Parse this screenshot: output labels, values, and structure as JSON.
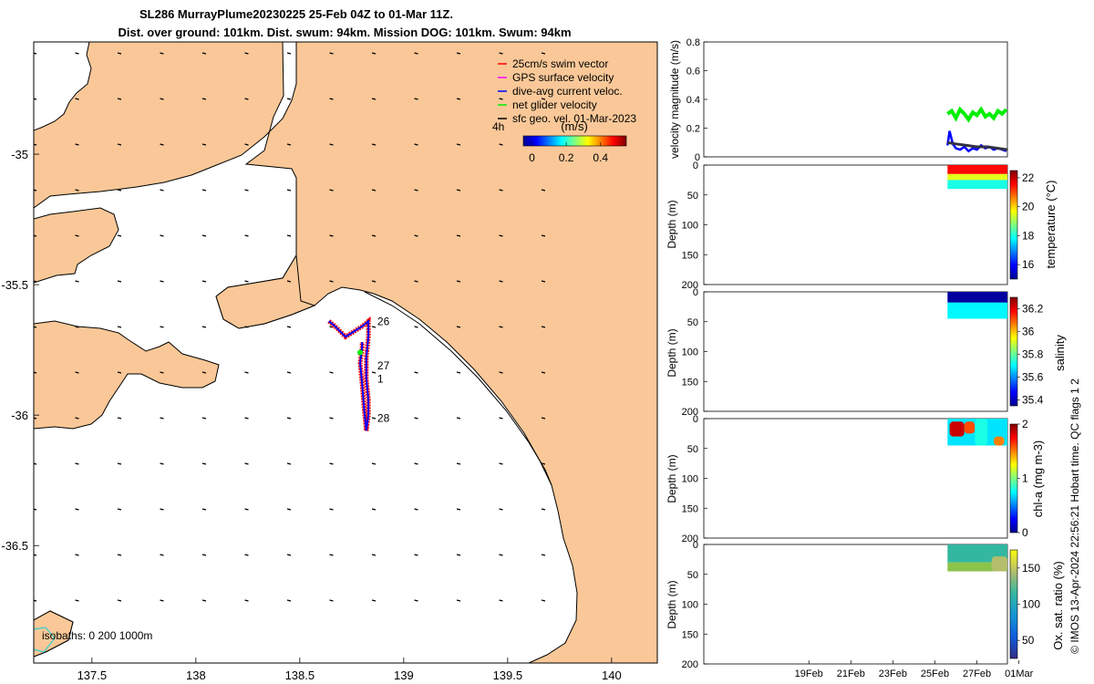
{
  "title": {
    "line1": "SL286 MurrayPlume20230225 25-Feb 04Z to 01-Mar 11Z.",
    "line2": "Dist. over ground: 101km. Dist. swum: 94km. Mission DOG: 101km. Swum: 94km"
  },
  "colors": {
    "land": "#fac898",
    "sea": "#ffffff",
    "track_red": "#ff0000",
    "track_blue": "#0000ff",
    "net_green": "#00ee00",
    "geo_dark": "#333344",
    "isobath_cyan": "#33cccc"
  },
  "chart_data": [
    {
      "type": "scatter",
      "id": "map",
      "xlabel": "",
      "ylabel": "",
      "xlim": [
        137.22,
        140.22
      ],
      "ylim": [
        -36.95,
        -34.57
      ],
      "x_ticks": [
        137.5,
        138,
        138.5,
        139,
        139.5,
        140
      ],
      "x_tick_labels": [
        "137.5",
        "138",
        "138.5",
        "139",
        "139.5",
        "140"
      ],
      "y_ticks": [
        -35,
        -35.5,
        -36,
        -36.5
      ],
      "y_tick_labels": [
        "-35",
        "-35.5",
        "-36",
        "-36.5"
      ],
      "legend": {
        "placement": "top-right",
        "entries": [
          {
            "label": "25cm/s swim vector",
            "color": "#ff0000"
          },
          {
            "label": "GPS surface velocity",
            "color": "#ff00ff"
          },
          {
            "label": "dive-avg current veloc.",
            "color": "#0000ff"
          },
          {
            "label": "net glider velocity",
            "color": "#00ee00"
          },
          {
            "label": "sfc geo. vel. 01-Mar-2023",
            "color": "#000000"
          }
        ]
      },
      "colorbar": {
        "label": "(m/s)",
        "corner_label": "4h",
        "ticks": [
          "0",
          "0.2",
          "0.4"
        ],
        "range": [
          -0.05,
          0.55
        ]
      },
      "isobaths_label": "isobaths: 0   200  1000m",
      "track": [
        [
          138.64,
          -35.64
        ],
        [
          138.67,
          -35.66
        ],
        [
          138.72,
          -35.7
        ],
        [
          138.76,
          -35.68
        ],
        [
          138.8,
          -35.66
        ],
        [
          138.83,
          -35.64
        ],
        [
          138.83,
          -35.7
        ],
        [
          138.82,
          -35.78
        ],
        [
          138.82,
          -35.86
        ],
        [
          138.83,
          -35.94
        ],
        [
          138.83,
          -36.0
        ],
        [
          138.82,
          -36.06
        ],
        [
          138.81,
          -35.98
        ],
        [
          138.8,
          -35.88
        ],
        [
          138.79,
          -35.8
        ],
        [
          138.8,
          -35.74
        ],
        [
          138.8,
          -35.72
        ]
      ],
      "day_labels": [
        {
          "text": "26",
          "lon": 138.86,
          "lat": -35.655
        },
        {
          "text": "27",
          "lon": 138.86,
          "lat": -35.825
        },
        {
          "text": "1",
          "lon": 138.86,
          "lat": -35.875
        },
        {
          "text": "28",
          "lon": 138.86,
          "lat": -36.025
        }
      ]
    },
    {
      "type": "line",
      "id": "velocity",
      "ylabel": "velocity magnitude (m/s)",
      "ylim": [
        0,
        0.8
      ],
      "y_ticks": [
        0,
        0.2,
        0.4,
        0.6,
        0.8
      ],
      "y_tick_labels": [
        "0",
        "0.2",
        "0.4",
        "0.6",
        "0.8"
      ],
      "xlim": [
        13.5,
        27.95
      ],
      "series": [
        {
          "name": "net glider velocity",
          "color": "#00ee00",
          "x": [
            25.1,
            25.3,
            25.5,
            25.7,
            25.9,
            26.1,
            26.3,
            26.5,
            26.7,
            26.9,
            27.1,
            27.3,
            27.5,
            27.7,
            27.9
          ],
          "values": [
            0.3,
            0.32,
            0.27,
            0.33,
            0.3,
            0.26,
            0.31,
            0.29,
            0.33,
            0.28,
            0.3,
            0.27,
            0.32,
            0.3,
            0.33
          ]
        },
        {
          "name": "dive-avg current veloc.",
          "color": "#0000ff",
          "x": [
            25.1,
            25.2,
            25.35,
            25.5,
            25.7,
            25.9,
            26.1,
            26.3,
            26.5,
            26.7,
            26.9,
            27.1,
            27.3,
            27.5,
            27.7,
            27.9
          ],
          "values": [
            0.08,
            0.18,
            0.09,
            0.06,
            0.05,
            0.07,
            0.04,
            0.06,
            0.05,
            0.08,
            0.06,
            0.07,
            0.05,
            0.06,
            0.05,
            0.04
          ]
        },
        {
          "name": "sfc geo. vel.",
          "color": "#333344",
          "x": [
            25.1,
            25.5,
            26.0,
            26.5,
            27.0,
            27.5,
            27.95
          ],
          "values": [
            0.1,
            0.09,
            0.08,
            0.07,
            0.07,
            0.06,
            0.05
          ]
        }
      ]
    },
    {
      "type": "heatmap",
      "id": "temperature",
      "ylabel": "Depth (m)",
      "colorbar_label": "temperature (°C)",
      "colorbar_ticks": [
        "16",
        "18",
        "20",
        "22"
      ],
      "colorbar_range": [
        15,
        22.5
      ],
      "y_ticks": [
        "0",
        "50",
        "100",
        "150",
        "200"
      ],
      "xlim": [
        13.5,
        27.95
      ],
      "ylim": [
        0,
        200
      ],
      "data_x": [
        25.1,
        27.95
      ],
      "depth_max": 40,
      "layers": [
        [
          0,
          15,
          21.5
        ],
        [
          15,
          25,
          19.5
        ],
        [
          25,
          40,
          18.0
        ]
      ]
    },
    {
      "type": "heatmap",
      "id": "salinity",
      "ylabel": "Depth (m)",
      "colorbar_label": "salinity",
      "colorbar_ticks": [
        "35.4",
        "35.6",
        "35.8",
        "36",
        "36.2"
      ],
      "colorbar_range": [
        35.35,
        36.3
      ],
      "y_ticks": [
        "0",
        "50",
        "100",
        "150",
        "200"
      ],
      "xlim": [
        13.5,
        27.95
      ],
      "ylim": [
        0,
        200
      ],
      "data_x": [
        25.1,
        27.95
      ],
      "depth_max": 45,
      "layers": [
        [
          0,
          18,
          35.38
        ],
        [
          18,
          45,
          35.7
        ]
      ]
    },
    {
      "type": "heatmap",
      "id": "chla",
      "ylabel": "Depth (m)",
      "colorbar_label": "chl-a (mg m-3)",
      "colorbar_ticks": [
        "0",
        "1",
        "2"
      ],
      "colorbar_range": [
        0,
        2
      ],
      "y_ticks": [
        "0",
        "50",
        "100",
        "150",
        "200"
      ],
      "xlim": [
        13.5,
        27.95
      ],
      "ylim": [
        0,
        200
      ],
      "data_x": [
        25.1,
        27.95
      ],
      "depth_max": 45,
      "layers": [
        [
          0,
          45,
          0.7
        ]
      ],
      "patches": [
        [
          25.2,
          25.9,
          5,
          30,
          1.85
        ],
        [
          25.9,
          26.4,
          5,
          25,
          1.6
        ],
        [
          26.4,
          27.0,
          0,
          45,
          0.8
        ],
        [
          27.3,
          27.8,
          30,
          45,
          1.5
        ]
      ]
    },
    {
      "type": "heatmap",
      "id": "oxygen",
      "ylabel": "Depth (m)",
      "colorbar_label": "Ox. sat. ratio (%)",
      "colorbar_ticks": [
        "50",
        "100",
        "150"
      ],
      "colorbar_range": [
        25,
        175
      ],
      "y_ticks": [
        "0",
        "50",
        "100",
        "150",
        "200"
      ],
      "xlim": [
        13.5,
        27.95
      ],
      "ylim": [
        0,
        200
      ],
      "data_x": [
        25.1,
        27.95
      ],
      "depth_max": 45,
      "layers": [
        [
          0,
          30,
          110
        ],
        [
          30,
          45,
          120
        ]
      ],
      "patches": [
        [
          27.2,
          27.95,
          20,
          45,
          150
        ]
      ]
    }
  ],
  "time_axis": {
    "ticks": [
      18.5,
      20.5,
      22.5,
      24.5,
      26.5,
      28.5
    ],
    "labels": [
      "19Feb",
      "21Feb",
      "23Feb",
      "25Feb",
      "27Feb",
      "01Mar"
    ]
  },
  "side_note": "© IMOS 13-Apr-2024 22:56:21 Hobart time. QC flags 1  2"
}
